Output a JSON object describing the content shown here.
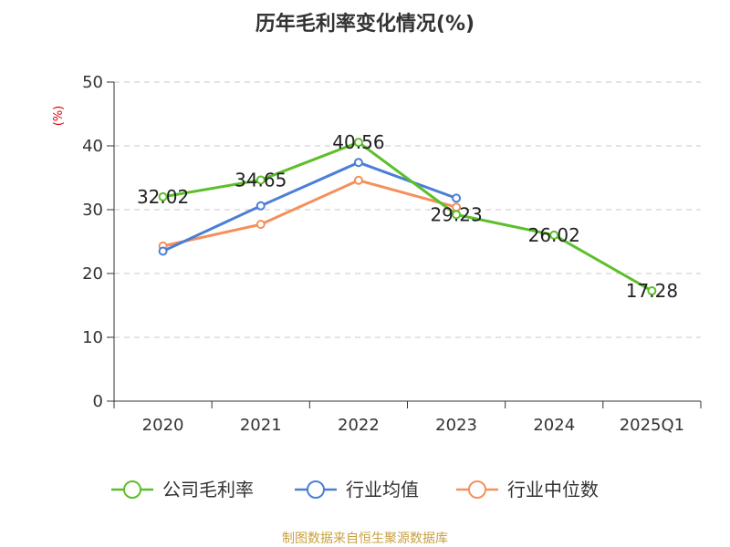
{
  "chart_data": {
    "type": "line",
    "title": "历年毛利率变化情况(%)",
    "ylabel": "(%)",
    "categories": [
      "2020",
      "2021",
      "2022",
      "2023",
      "2024",
      "2025Q1"
    ],
    "ylim": [
      0,
      50
    ],
    "yticks": [
      0,
      10,
      20,
      30,
      40,
      50
    ],
    "grid": true,
    "legend_position": "bottom",
    "series": [
      {
        "name": "公司毛利率",
        "color": "#5cbf2a",
        "values": [
          32.02,
          34.65,
          40.56,
          29.23,
          26.02,
          17.28
        ],
        "labels": [
          "32.02",
          "34.65",
          "40.56",
          "29.23",
          "26.02",
          "17.28"
        ]
      },
      {
        "name": "行业均值",
        "color": "#4a7fd6",
        "values": [
          23.5,
          30.6,
          37.4,
          31.8,
          null,
          null
        ]
      },
      {
        "name": "行业中位数",
        "color": "#f5905c",
        "values": [
          24.3,
          27.7,
          34.6,
          30.4,
          null,
          null
        ]
      }
    ],
    "source": "制图数据来自恒生聚源数据库"
  }
}
